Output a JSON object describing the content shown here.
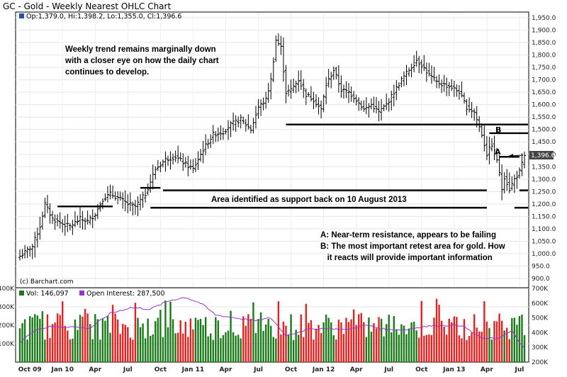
{
  "chart_data": {
    "type": "ohlc",
    "title": "GC - Gold - Weekly Nearest OHLC Chart",
    "ohlc_readout": "Op:1,379.0, Hi:1,398.2, Lo:1,355.0, Cl:1,396.6",
    "last_price_label": "1,396.6",
    "price_axis": {
      "ylim": [
        900,
        1950
      ],
      "ticks": [
        "1,950.0",
        "1,900.0",
        "1,850.0",
        "1,800.0",
        "1,750.0",
        "1,700.0",
        "1,650.0",
        "1,600.0",
        "1,550.0",
        "1,500.0",
        "1,450.0",
        "1,400.0",
        "1,350.0",
        "1,300.0",
        "1,250.0",
        "1,200.0",
        "1,150.0",
        "1,100.0",
        "1,050.0",
        "1,000.0",
        "950.0",
        "900.0"
      ],
      "tick_values": [
        1950,
        1900,
        1850,
        1800,
        1750,
        1700,
        1650,
        1600,
        1550,
        1500,
        1450,
        1400,
        1350,
        1300,
        1250,
        1200,
        1150,
        1100,
        1050,
        1000,
        950,
        900
      ]
    },
    "time_axis": {
      "labels": [
        "Oct 09",
        "Jan 10",
        "Apr",
        "Jul",
        "Oct",
        "Jan 11",
        "Apr",
        "Jul",
        "Oct",
        "Jan 12",
        "Apr",
        "Jul",
        "Oct",
        "Jan 13",
        "Apr",
        "Jul"
      ],
      "label_bar_index": [
        4,
        17,
        30,
        43,
        56,
        69,
        82,
        95,
        108,
        121,
        134,
        147,
        160,
        173,
        186,
        199
      ]
    },
    "price_anchors": [
      [
        0,
        990
      ],
      [
        5,
        1030
      ],
      [
        8,
        1110
      ],
      [
        10,
        1200
      ],
      [
        13,
        1140
      ],
      [
        17,
        1120
      ],
      [
        20,
        1110
      ],
      [
        24,
        1140
      ],
      [
        27,
        1130
      ],
      [
        30,
        1160
      ],
      [
        33,
        1220
      ],
      [
        36,
        1240
      ],
      [
        40,
        1220
      ],
      [
        43,
        1200
      ],
      [
        46,
        1190
      ],
      [
        50,
        1240
      ],
      [
        54,
        1340
      ],
      [
        58,
        1380
      ],
      [
        62,
        1390
      ],
      [
        66,
        1360
      ],
      [
        69,
        1340
      ],
      [
        73,
        1420
      ],
      [
        77,
        1480
      ],
      [
        81,
        1490
      ],
      [
        84,
        1520
      ],
      [
        88,
        1540
      ],
      [
        92,
        1500
      ],
      [
        95,
        1590
      ],
      [
        98,
        1620
      ],
      [
        100,
        1700
      ],
      [
        102,
        1860
      ],
      [
        104,
        1830
      ],
      [
        106,
        1650
      ],
      [
        108,
        1660
      ],
      [
        111,
        1700
      ],
      [
        114,
        1640
      ],
      [
        117,
        1620
      ],
      [
        120,
        1580
      ],
      [
        122,
        1680
      ],
      [
        125,
        1740
      ],
      [
        128,
        1660
      ],
      [
        131,
        1650
      ],
      [
        134,
        1620
      ],
      [
        137,
        1580
      ],
      [
        140,
        1600
      ],
      [
        143,
        1570
      ],
      [
        146,
        1600
      ],
      [
        149,
        1650
      ],
      [
        152,
        1700
      ],
      [
        155,
        1740
      ],
      [
        158,
        1780
      ],
      [
        160,
        1760
      ],
      [
        163,
        1720
      ],
      [
        166,
        1690
      ],
      [
        169,
        1680
      ],
      [
        172,
        1670
      ],
      [
        175,
        1650
      ],
      [
        178,
        1590
      ],
      [
        181,
        1570
      ],
      [
        184,
        1480
      ],
      [
        186,
        1400
      ],
      [
        188,
        1440
      ],
      [
        190,
        1380
      ],
      [
        192,
        1260
      ],
      [
        193,
        1310
      ],
      [
        195,
        1260
      ],
      [
        197,
        1300
      ],
      [
        199,
        1330
      ],
      [
        201,
        1390
      ]
    ],
    "volume_axis": {
      "ylim": [
        0,
        400000
      ],
      "ticks": [
        "400K",
        "300K",
        "200K",
        "100K"
      ],
      "tick_values": [
        400000,
        300000,
        200000,
        100000
      ]
    },
    "open_interest_axis": {
      "ylim": [
        200000,
        700000
      ],
      "ticks": [
        "700K",
        "600K",
        "500K",
        "400K",
        "300K",
        "200K"
      ],
      "tick_values": [
        700000,
        600000,
        500000,
        400000,
        300000,
        200000
      ]
    },
    "volume_legend": "Vol: 146,097",
    "open_interest_legend": "Open Interest: 287,500",
    "open_interest_anchors": [
      [
        0,
        330000
      ],
      [
        6,
        420000
      ],
      [
        12,
        440000
      ],
      [
        20,
        440000
      ],
      [
        28,
        430000
      ],
      [
        36,
        530000
      ],
      [
        44,
        570000
      ],
      [
        52,
        560000
      ],
      [
        60,
        620000
      ],
      [
        66,
        640000
      ],
      [
        72,
        600000
      ],
      [
        78,
        520000
      ],
      [
        86,
        500000
      ],
      [
        94,
        480000
      ],
      [
        100,
        500000
      ],
      [
        106,
        380000
      ],
      [
        114,
        420000
      ],
      [
        122,
        430000
      ],
      [
        130,
        420000
      ],
      [
        138,
        450000
      ],
      [
        146,
        420000
      ],
      [
        154,
        420000
      ],
      [
        160,
        440000
      ],
      [
        168,
        450000
      ],
      [
        176,
        450000
      ],
      [
        184,
        360000
      ],
      [
        190,
        360000
      ],
      [
        196,
        410000
      ],
      [
        201,
        287500
      ]
    ],
    "volume_up_color": "#1a7a1a",
    "volume_down_color": "#dd2222",
    "oi_line_color": "#9933cc",
    "bar_color": "#000000",
    "level_lines": [
      {
        "price": 1190,
        "from_bar": 15,
        "to_bar": 37
      },
      {
        "price": 1265,
        "from_bar": 48,
        "to_bar": 56
      },
      {
        "price": 1255,
        "from_bar": 57,
        "to_bar": 186
      },
      {
        "price": 1185,
        "from_bar": 52,
        "to_bar": 186
      },
      {
        "price": 1520,
        "from_bar": 106,
        "to_bar": 210
      },
      {
        "price": 1485,
        "from_bar": 187,
        "to_bar": 206
      },
      {
        "price": 1390,
        "from_bar": 191,
        "to_bar": 199
      },
      {
        "price": 1255,
        "from_bar": 199,
        "to_bar": 206
      },
      {
        "price": 1185,
        "from_bar": 197,
        "to_bar": 206
      }
    ],
    "annotations": {
      "trend_note": [
        "Weekly trend remains marginally down",
        "with a closer eye on how the daily chart",
        "continues to develop."
      ],
      "support_note": "Area identified as support back on 10 August 2013",
      "legend_note": [
        "A: Near-term resistance, appears to be failing",
        "B: The most important retest area for gold.  How",
        "   it reacts will provide important information"
      ],
      "label_a": "A",
      "label_b": "B",
      "credit": "(c) Barchart.com"
    }
  }
}
